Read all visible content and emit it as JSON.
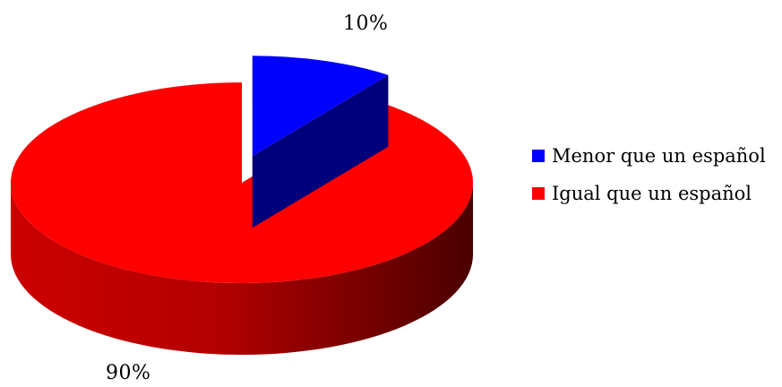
{
  "chart_data": {
    "type": "pie",
    "series": [
      {
        "name": "Menor que un español",
        "value": 10,
        "label": "10%",
        "color": "#0000ff"
      },
      {
        "name": "Igual que un español",
        "value": 90,
        "label": "90%",
        "color": "#ff0000"
      }
    ],
    "legend_position": "right",
    "exploded_series": "Menor que un español",
    "style": "3d"
  }
}
